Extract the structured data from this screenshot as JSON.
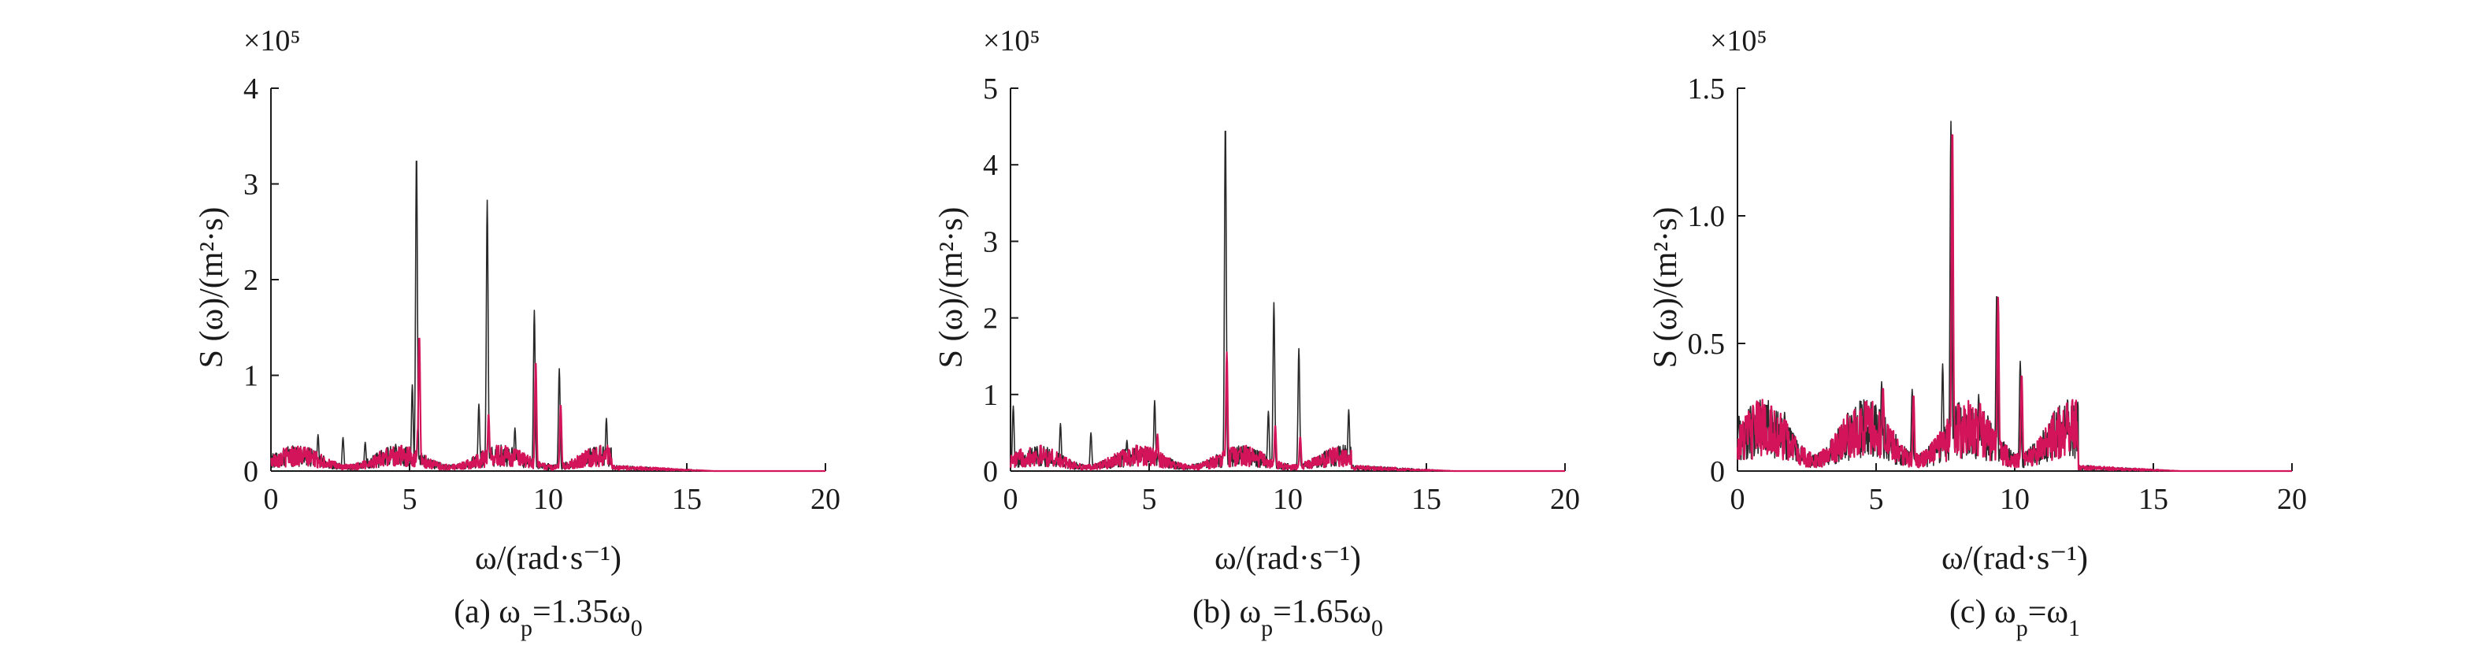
{
  "figure": {
    "colors": {
      "black": "#2a2a2a",
      "red": "#d4145a",
      "axis": "#1a1a1a"
    }
  },
  "chart_data": [
    {
      "type": "line",
      "caption": "(a) ωp=1.35ω0",
      "caption_parts": {
        "prefix": "(a) ω",
        "sub1": "p",
        "mid": "=1.35ω",
        "sub2": "0"
      },
      "xlabel": "ω/(rad·s⁻¹)",
      "ylabel": "S (ω)/(m²·s)",
      "y_exponent": "×10⁵",
      "xlim": [
        0,
        20
      ],
      "ylim": [
        0,
        4
      ],
      "xticks": [
        "0",
        "5",
        "10",
        "15",
        "20"
      ],
      "yticks": [
        "0",
        "1",
        "2",
        "3",
        "4"
      ],
      "series": [
        {
          "color": "#2a2a2a",
          "peaks": [
            [
              5.25,
              3.32
            ],
            [
              7.8,
              2.83
            ],
            [
              9.5,
              1.68
            ],
            [
              10.4,
              1.07
            ],
            [
              7.5,
              0.7
            ],
            [
              12.1,
              0.55
            ],
            [
              5.1,
              0.9
            ],
            [
              8.8,
              0.45
            ],
            [
              1.7,
              0.38
            ],
            [
              2.6,
              0.35
            ],
            [
              3.4,
              0.3
            ],
            [
              4.5,
              0.28
            ]
          ]
        },
        {
          "color": "#d4145a",
          "peaks": [
            [
              5.35,
              1.42
            ],
            [
              9.55,
              1.15
            ],
            [
              7.85,
              0.6
            ],
            [
              10.45,
              0.7
            ],
            [
              5.3,
              0.45
            ]
          ]
        }
      ]
    },
    {
      "type": "line",
      "caption": "(b) ωp=1.65ω0",
      "caption_parts": {
        "prefix": "(b) ω",
        "sub1": "p",
        "mid": "=1.65ω",
        "sub2": "0"
      },
      "xlabel": "ω/(rad·s⁻¹)",
      "ylabel": "S (ω)/(m²·s)",
      "y_exponent": "×10⁵",
      "xlim": [
        0,
        20
      ],
      "ylim": [
        0,
        5
      ],
      "xticks": [
        "0",
        "5",
        "10",
        "15",
        "20"
      ],
      "yticks": [
        "0",
        "1",
        "2",
        "3",
        "4",
        "5"
      ],
      "series": [
        {
          "color": "#2a2a2a",
          "peaks": [
            [
              7.75,
              4.55
            ],
            [
              9.5,
              2.2
            ],
            [
              10.4,
              1.6
            ],
            [
              5.2,
              0.92
            ],
            [
              12.2,
              0.8
            ],
            [
              9.3,
              0.78
            ],
            [
              1.8,
              0.62
            ],
            [
              2.9,
              0.5
            ],
            [
              4.2,
              0.4
            ],
            [
              0.1,
              0.85
            ]
          ]
        },
        {
          "color": "#d4145a",
          "peaks": [
            [
              7.8,
              1.55
            ],
            [
              9.55,
              0.6
            ],
            [
              5.3,
              0.48
            ],
            [
              10.45,
              0.45
            ]
          ]
        }
      ]
    },
    {
      "type": "line",
      "caption": "(c) ωp=ω1",
      "caption_parts": {
        "prefix": "(c) ω",
        "sub1": "p",
        "mid": "=ω",
        "sub2": "1"
      },
      "xlabel": "ω/(rad·s⁻¹)",
      "ylabel": "S (ω)/(m²·s)",
      "y_exponent": "×10⁵",
      "xlim": [
        0,
        20
      ],
      "ylim": [
        0,
        1.5
      ],
      "xticks": [
        "0",
        "5",
        "10",
        "15",
        "20"
      ],
      "yticks": [
        "0",
        "0.5",
        "1.0",
        "1.5"
      ],
      "series": [
        {
          "color": "#2a2a2a",
          "peaks": [
            [
              7.7,
              1.37
            ],
            [
              9.35,
              0.7
            ],
            [
              10.2,
              0.43
            ],
            [
              7.4,
              0.42
            ],
            [
              5.2,
              0.35
            ],
            [
              6.3,
              0.32
            ],
            [
              8.7,
              0.3
            ],
            [
              11.8,
              0.17
            ],
            [
              1.7,
              0.23
            ],
            [
              0.05,
              0.22
            ],
            [
              4.3,
              0.15
            ]
          ]
        },
        {
          "color": "#d4145a",
          "peaks": [
            [
              7.75,
              1.35
            ],
            [
              9.4,
              0.68
            ],
            [
              10.25,
              0.38
            ],
            [
              5.25,
              0.33
            ],
            [
              6.35,
              0.3
            ],
            [
              8.75,
              0.27
            ],
            [
              11.85,
              0.16
            ],
            [
              1.75,
              0.2
            ]
          ]
        }
      ]
    }
  ]
}
